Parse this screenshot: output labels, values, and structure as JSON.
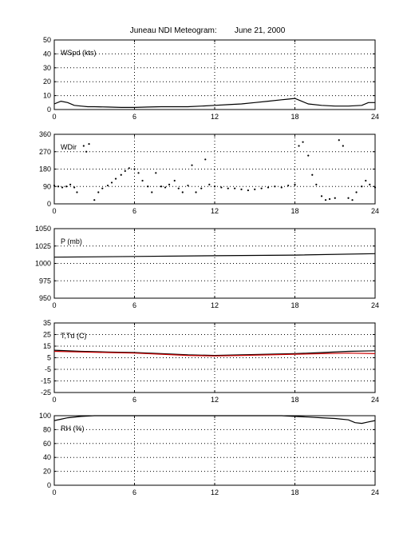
{
  "title": "Juneau NDI Meteogram:        June 21, 2000",
  "chart_data": [
    {
      "type": "line",
      "label": "WSpd (kts)",
      "xlim": [
        0,
        24
      ],
      "ylim": [
        0,
        50
      ],
      "xticks": [
        0,
        6,
        12,
        18,
        24
      ],
      "yticks": [
        0,
        10,
        20,
        30,
        40,
        50
      ],
      "grid": true,
      "series": [
        {
          "color": "#000000",
          "x": [
            0,
            0.5,
            1,
            1.5,
            2,
            2.5,
            3,
            4,
            5,
            6,
            7,
            8,
            9,
            10,
            11,
            12,
            13,
            14,
            15,
            16,
            17,
            17.5,
            18,
            18.5,
            19,
            20,
            21,
            22,
            23,
            23.5,
            24
          ],
          "y": [
            4,
            6,
            5,
            3,
            2.5,
            2,
            2,
            1.8,
            1.5,
            1.5,
            1.8,
            2,
            2,
            2,
            2.5,
            3,
            3.5,
            4,
            5,
            6,
            7,
            7.5,
            8,
            6,
            4,
            3,
            2.5,
            2.5,
            3,
            5,
            5
          ]
        }
      ]
    },
    {
      "type": "scatter",
      "label": "WDir",
      "xlim": [
        0,
        24
      ],
      "ylim": [
        0,
        360
      ],
      "xticks": [
        0,
        6,
        12,
        18,
        24
      ],
      "yticks": [
        0,
        90,
        180,
        270,
        360
      ],
      "grid": true,
      "series": [
        {
          "color": "#000000",
          "x": [
            0,
            0.3,
            0.6,
            0.9,
            1.2,
            1.5,
            1.7,
            2.2,
            2.4,
            2.6,
            3,
            3.3,
            3.6,
            4,
            4.3,
            4.6,
            5,
            5.3,
            5.6,
            6,
            6.3,
            6.6,
            7,
            7.3,
            7.6,
            8,
            8.3,
            8.6,
            9,
            9.3,
            9.6,
            10,
            10.3,
            10.6,
            11,
            11.3,
            11.6,
            12,
            12.5,
            13,
            13.5,
            14,
            14.5,
            15,
            15.5,
            16,
            16.5,
            17,
            17.5,
            18,
            18.3,
            18.6,
            19,
            19.3,
            19.6,
            20,
            20.3,
            20.6,
            21,
            21.3,
            21.6,
            22,
            22.3,
            22.6,
            23,
            23.3,
            23.6,
            24
          ],
          "y": [
            95,
            90,
            85,
            90,
            100,
            85,
            60,
            300,
            270,
            310,
            20,
            60,
            80,
            95,
            110,
            130,
            150,
            170,
            185,
            180,
            160,
            120,
            90,
            60,
            160,
            90,
            85,
            100,
            120,
            80,
            60,
            95,
            200,
            60,
            80,
            230,
            100,
            90,
            85,
            80,
            80,
            75,
            70,
            75,
            80,
            85,
            90,
            85,
            95,
            100,
            300,
            320,
            250,
            150,
            100,
            40,
            20,
            25,
            30,
            330,
            300,
            30,
            20,
            60,
            90,
            120,
            100,
            85
          ]
        }
      ]
    },
    {
      "type": "line",
      "label": "P (mb)",
      "xlim": [
        0,
        24
      ],
      "ylim": [
        950,
        1050
      ],
      "xticks": [
        0,
        6,
        12,
        18,
        24
      ],
      "yticks": [
        950,
        975,
        1000,
        1025,
        1050
      ],
      "grid": true,
      "series": [
        {
          "color": "#000000",
          "x": [
            0,
            6,
            12,
            18,
            24
          ],
          "y": [
            1009,
            1010,
            1011,
            1012,
            1014
          ]
        }
      ]
    },
    {
      "type": "line",
      "label": "T,Td (C)",
      "xlim": [
        0,
        24
      ],
      "ylim": [
        -25,
        35
      ],
      "xticks": [
        0,
        6,
        12,
        18,
        24
      ],
      "yticks": [
        -25,
        -15,
        -5,
        5,
        15,
        25,
        35
      ],
      "grid": true,
      "series": [
        {
          "color": "#000000",
          "x": [
            0,
            2,
            4,
            6,
            8,
            10,
            12,
            14,
            16,
            18,
            20,
            22,
            24
          ],
          "y": [
            11.5,
            10.5,
            10,
            9.5,
            8.5,
            7.5,
            7,
            7.5,
            8,
            8.5,
            9.5,
            10.5,
            11
          ]
        },
        {
          "color": "#cc0000",
          "x": [
            0,
            2,
            4,
            6,
            8,
            10,
            12,
            14,
            16,
            18,
            20,
            22,
            24
          ],
          "y": [
            10.5,
            10,
            9.5,
            9,
            8,
            7,
            6.5,
            7,
            7.5,
            8,
            8.5,
            9,
            8.5
          ]
        }
      ]
    },
    {
      "type": "line",
      "label": "RH (%)",
      "xlim": [
        0,
        24
      ],
      "ylim": [
        0,
        100
      ],
      "xticks": [
        0,
        6,
        12,
        18,
        24
      ],
      "yticks": [
        0,
        20,
        40,
        60,
        80,
        100
      ],
      "grid": true,
      "series": [
        {
          "color": "#000000",
          "x": [
            0,
            0.5,
            1,
            2,
            3,
            4,
            5,
            6,
            16,
            17,
            18,
            19,
            20,
            21,
            22,
            22.5,
            23,
            23.5,
            24
          ],
          "y": [
            93,
            95,
            97,
            99,
            100,
            100,
            100,
            100,
            100,
            100,
            99,
            98,
            97,
            96,
            94,
            90,
            89,
            91,
            93
          ]
        }
      ]
    }
  ]
}
